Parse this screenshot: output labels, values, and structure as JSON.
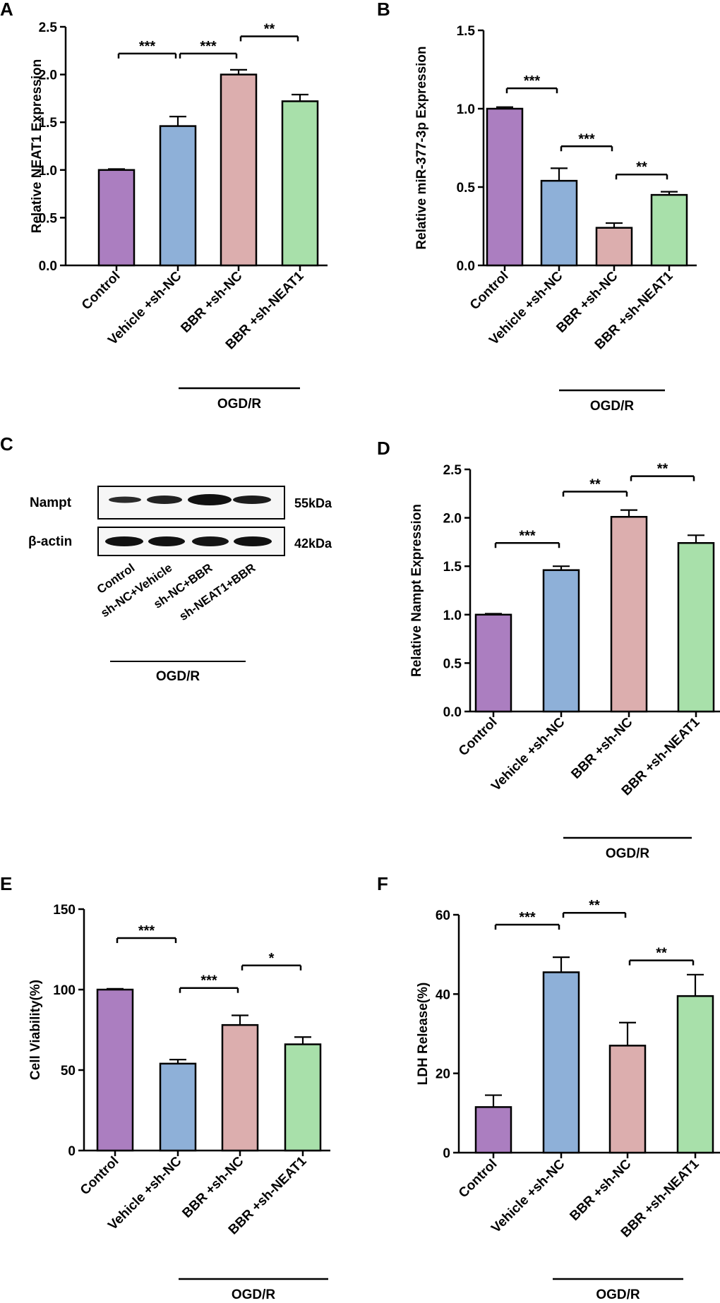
{
  "colors": {
    "purple": "#ab7ec0",
    "blue": "#8eb0d8",
    "pink": "#dcaeae",
    "green": "#a8e0aa"
  },
  "chart_data": [
    {
      "panel": "A",
      "type": "bar",
      "ylabel": "Relative NEAT1 Expression",
      "categories": [
        "Control",
        "Vehicle +sh-NC",
        "BBR +sh-NC",
        "BBR +sh-NEAT1"
      ],
      "values": [
        1.0,
        1.46,
        2.0,
        1.72
      ],
      "errors": [
        0.01,
        0.1,
        0.05,
        0.07
      ],
      "ylim": [
        0,
        2.5
      ],
      "yticks": [
        "0.0",
        "0.5",
        "1.0",
        "1.5",
        "2.0",
        "2.5"
      ],
      "significance": [
        {
          "from": 0,
          "to": 1,
          "label": "***",
          "y": 2.22
        },
        {
          "from": 1,
          "to": 2,
          "label": "***",
          "y": 2.22
        },
        {
          "from": 2,
          "to": 3,
          "label": "**",
          "y": 2.4
        }
      ],
      "group_label": "OGD/R"
    },
    {
      "panel": "B",
      "type": "bar",
      "ylabel": "Relative miR-377-3p Expression",
      "categories": [
        "Control",
        "Vehicle +sh-NC",
        "BBR +sh-NC",
        "BBR +sh-NEAT1"
      ],
      "values": [
        1.0,
        0.54,
        0.24,
        0.45
      ],
      "errors": [
        0.01,
        0.08,
        0.03,
        0.02
      ],
      "ylim": [
        0,
        1.5
      ],
      "yticks": [
        "0.0",
        "0.5",
        "1.0",
        "1.5"
      ],
      "significance": [
        {
          "from": 0,
          "to": 1,
          "label": "***",
          "y": 1.13
        },
        {
          "from": 1,
          "to": 2,
          "label": "***",
          "y": 0.76
        },
        {
          "from": 2,
          "to": 3,
          "label": "**",
          "y": 0.58
        }
      ],
      "group_label": "OGD/R"
    },
    {
      "panel": "D",
      "type": "bar",
      "ylabel": "Relative Nampt Expression",
      "categories": [
        "Control",
        "Vehicle +sh-NC",
        "BBR +sh-NC",
        "BBR +sh-NEAT1"
      ],
      "values": [
        1.0,
        1.46,
        2.01,
        1.74
      ],
      "errors": [
        0.01,
        0.04,
        0.07,
        0.08
      ],
      "ylim": [
        0,
        2.5
      ],
      "yticks": [
        "0.0",
        "0.5",
        "1.0",
        "1.5",
        "2.0",
        "2.5"
      ],
      "significance": [
        {
          "from": 0,
          "to": 1,
          "label": "***",
          "y": 1.74
        },
        {
          "from": 1,
          "to": 2,
          "label": "**",
          "y": 2.27
        },
        {
          "from": 2,
          "to": 3,
          "label": "**",
          "y": 2.43
        }
      ],
      "group_label": "OGD/R"
    },
    {
      "panel": "E",
      "type": "bar",
      "ylabel": "Cell Viability(%)",
      "categories": [
        "Control",
        "Vehicle +sh-NC",
        "BBR +sh-NC",
        "BBR +sh-NEAT1"
      ],
      "values": [
        100,
        54,
        78,
        66
      ],
      "errors": [
        0.5,
        2.5,
        6,
        4.5
      ],
      "ylim": [
        0,
        150
      ],
      "yticks": [
        "0",
        "50",
        "100",
        "150"
      ],
      "significance": [
        {
          "from": 0,
          "to": 1,
          "label": "***",
          "y": 132
        },
        {
          "from": 1,
          "to": 2,
          "label": "***",
          "y": 101
        },
        {
          "from": 2,
          "to": 3,
          "label": "*",
          "y": 115
        }
      ],
      "group_label": "OGD/R"
    },
    {
      "panel": "F",
      "type": "bar",
      "ylabel": "LDH Release(%)",
      "categories": [
        "Control",
        "Vehicle +sh-NC",
        "BBR +sh-NC",
        "BBR +sh-NEAT1"
      ],
      "values": [
        11.5,
        45.5,
        27,
        39.5
      ],
      "errors": [
        3,
        3.8,
        5.8,
        5.4
      ],
      "ylim": [
        0,
        60
      ],
      "yticks": [
        "0",
        "20",
        "40",
        "60"
      ],
      "significance": [
        {
          "from": 0,
          "to": 1,
          "label": "***",
          "y": 57.5
        },
        {
          "from": 1,
          "to": 2,
          "label": "**",
          "y": 60.5
        },
        {
          "from": 2,
          "to": 3,
          "label": "**",
          "y": 48.5
        }
      ],
      "group_label": "OGD/R"
    }
  ],
  "blot": {
    "panel": "C",
    "rows": [
      {
        "label": "Nampt",
        "size": "55kDa"
      },
      {
        "label": "β-actin",
        "size": "42kDa"
      }
    ],
    "lanes": [
      "Control",
      "sh-NC+Vehicle",
      "sh-NC+BBR",
      "sh-NEAT1+BBR"
    ],
    "group_label": "OGD/R"
  }
}
